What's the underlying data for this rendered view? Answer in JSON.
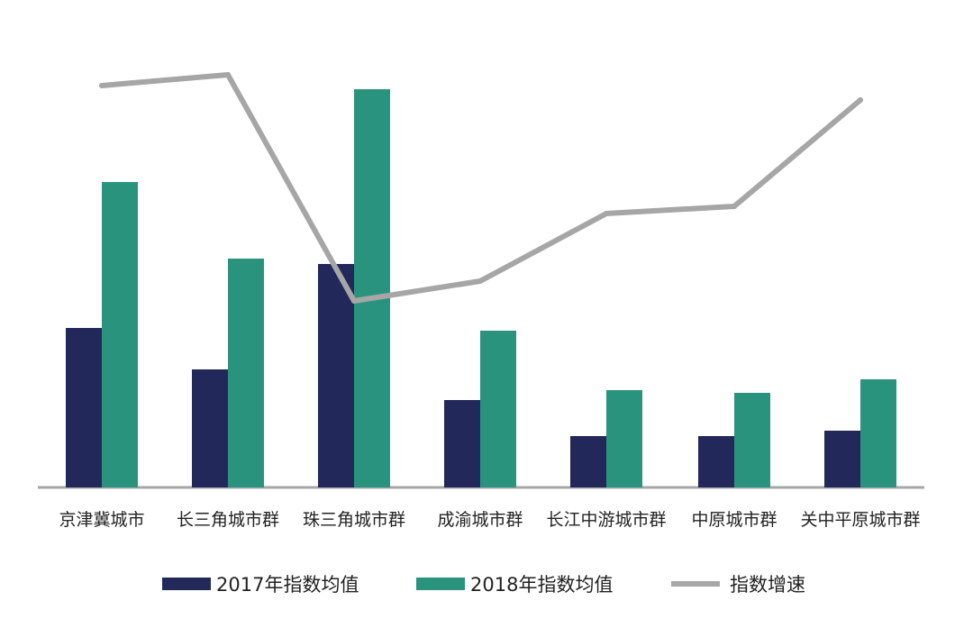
{
  "chart_data": {
    "type": "bar",
    "title": "",
    "xlabel": "",
    "ylabel": "",
    "categories": [
      "京津冀城市",
      "长三角城市群",
      "珠三角城市群",
      "成渝城市群",
      "长江中游城市群",
      "中原城市群",
      "关中平原城市群"
    ],
    "series": [
      {
        "name": "2017年指数均值",
        "kind": "bar",
        "color": "#22285a",
        "values": [
          177,
          131,
          248,
          97,
          57,
          57,
          63
        ]
      },
      {
        "name": "2018年指数均值",
        "kind": "bar",
        "color": "#2a937e",
        "values": [
          339,
          254,
          442,
          174,
          108,
          105,
          120
        ]
      },
      {
        "name": "指数增速",
        "kind": "line",
        "color": "#a6a6a6",
        "values": [
          446,
          458,
          207,
          229,
          304,
          312,
          430
        ]
      }
    ],
    "ylim": [
      0,
      500
    ],
    "grid": false,
    "legend_position": "bottom"
  },
  "colors": {
    "axis": "#a6a6a6",
    "label": "#222222"
  }
}
